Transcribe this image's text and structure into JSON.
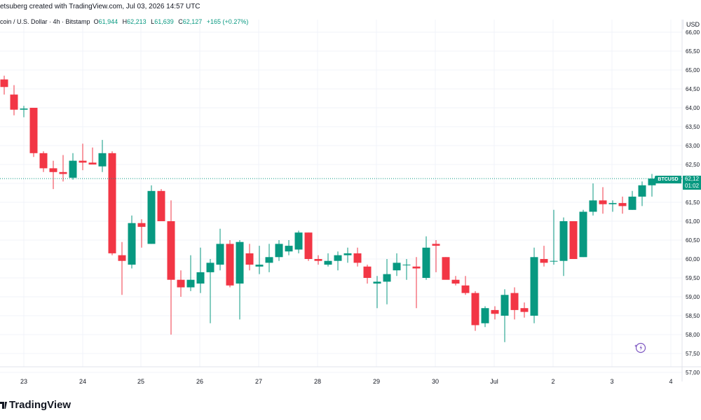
{
  "header": {
    "credit": "etsuberg created with TradingView.com, Jul 03, 2026 14:57 UTC"
  },
  "symbol_line": {
    "name": "coin / U.S. Dollar · 4h · Bitstamp",
    "o_label": "O",
    "o_value": "61,944",
    "h_label": "H",
    "h_value": "62,213",
    "l_label": "L",
    "l_value": "61,639",
    "c_label": "C",
    "c_value": "62,127",
    "change": "+165 (+0.27%)"
  },
  "axis": {
    "currency": "USD"
  },
  "price_tag": {
    "symbol": "BTCUSD",
    "price": "62,12",
    "countdown": "01:02"
  },
  "brand": {
    "name": "TradingView"
  },
  "icons": {
    "logo": "tradingview-logo-icon",
    "sparkle": "sparkle-icon"
  },
  "colors": {
    "up": "#089981",
    "down": "#f23645",
    "grid": "#f0f3fa",
    "axis_text": "#131722"
  },
  "chart_data": {
    "type": "candlestick",
    "title": "",
    "ylabel": "USD",
    "ylim": [
      56800,
      66400
    ],
    "y_ticks": [
      57000,
      57500,
      58000,
      58500,
      59000,
      59500,
      60000,
      60500,
      61000,
      61500,
      62000,
      62500,
      63000,
      63500,
      64000,
      64500,
      65000,
      65500,
      66000
    ],
    "y_tick_labels": [
      "57,00",
      "57,50",
      "58,00",
      "58,50",
      "59,00",
      "59,50",
      "60,00",
      "60,50",
      "61,00",
      "61,50",
      "62,00",
      "62,50",
      "63,00",
      "63,50",
      "64,00",
      "64,50",
      "65,00",
      "65,50",
      "66,00"
    ],
    "x_tick_labels": [
      "23",
      "24",
      "25",
      "26",
      "27",
      "28",
      "29",
      "30",
      "Jul",
      "2",
      "3",
      "4"
    ],
    "last_price": 62127,
    "candles": [
      [
        64750,
        64850,
        64350,
        64550
      ],
      [
        64350,
        64600,
        63800,
        63950
      ],
      [
        63950,
        64050,
        63750,
        63980
      ],
      [
        64000,
        64000,
        62700,
        62800
      ],
      [
        62800,
        62850,
        62300,
        62400
      ],
      [
        62400,
        62600,
        61850,
        62300
      ],
      [
        62300,
        62750,
        62050,
        62250
      ],
      [
        62150,
        62800,
        62100,
        62600
      ],
      [
        62600,
        63050,
        62350,
        62550
      ],
      [
        62550,
        62950,
        62500,
        62500
      ],
      [
        62450,
        63150,
        62300,
        62800
      ],
      [
        62800,
        62850,
        60100,
        60150
      ],
      [
        60100,
        60450,
        59050,
        59950
      ],
      [
        59850,
        61150,
        59750,
        60950
      ],
      [
        60950,
        61050,
        60300,
        60850
      ],
      [
        60400,
        61950,
        60400,
        61800
      ],
      [
        61800,
        61850,
        61000,
        61000
      ],
      [
        61000,
        61550,
        58000,
        59450
      ],
      [
        59450,
        59700,
        59000,
        59250
      ],
      [
        59250,
        60100,
        59150,
        59450
      ],
      [
        59350,
        60300,
        59100,
        59650
      ],
      [
        59650,
        60000,
        58300,
        59900
      ],
      [
        59850,
        60800,
        59700,
        60400
      ],
      [
        60400,
        60500,
        59250,
        59300
      ],
      [
        59350,
        60500,
        58400,
        60450
      ],
      [
        60150,
        60400,
        59700,
        59850
      ],
      [
        59800,
        60350,
        59600,
        59850
      ],
      [
        59900,
        60400,
        59650,
        60050
      ],
      [
        60050,
        60500,
        59950,
        60400
      ],
      [
        60200,
        60500,
        60100,
        60350
      ],
      [
        60250,
        60750,
        60150,
        60700
      ],
      [
        60700,
        60700,
        59950,
        60000
      ],
      [
        60000,
        60100,
        59850,
        59950
      ],
      [
        59850,
        60150,
        59800,
        59950
      ],
      [
        59950,
        60200,
        59700,
        60100
      ],
      [
        60100,
        60300,
        59900,
        60150
      ],
      [
        60150,
        60300,
        59800,
        59900
      ],
      [
        59800,
        59850,
        59350,
        59500
      ],
      [
        59350,
        59550,
        58700,
        59400
      ],
      [
        59400,
        60000,
        58800,
        59600
      ],
      [
        59700,
        60150,
        59550,
        59900
      ],
      [
        59850,
        60000,
        59450,
        59850
      ],
      [
        59800,
        60050,
        58700,
        59750
      ],
      [
        59500,
        60600,
        59450,
        60300
      ],
      [
        60400,
        60500,
        59650,
        60350
      ],
      [
        60050,
        60050,
        59500,
        59450
      ],
      [
        59450,
        59550,
        59300,
        59350
      ],
      [
        59300,
        59550,
        59050,
        59100
      ],
      [
        59100,
        59150,
        58100,
        58250
      ],
      [
        58300,
        58750,
        58200,
        58700
      ],
      [
        58650,
        58750,
        58400,
        58550
      ],
      [
        58500,
        59200,
        57800,
        59050
      ],
      [
        59100,
        59250,
        58400,
        58650
      ],
      [
        58700,
        58850,
        58450,
        58600
      ],
      [
        58500,
        60300,
        58300,
        60050
      ],
      [
        60000,
        60350,
        59800,
        59900
      ],
      [
        59950,
        61300,
        59850,
        59950
      ],
      [
        59950,
        61100,
        59550,
        61000
      ],
      [
        61000,
        61000,
        60000,
        60000
      ],
      [
        60050,
        61300,
        60050,
        61250
      ],
      [
        61250,
        62000,
        61150,
        61550
      ],
      [
        61550,
        61900,
        61200,
        61450
      ],
      [
        61450,
        61550,
        61250,
        61480
      ],
      [
        61480,
        61650,
        61200,
        61400
      ],
      [
        61300,
        61800,
        61300,
        61650
      ],
      [
        61650,
        62050,
        61400,
        61950
      ],
      [
        61950,
        62250,
        61650,
        62127
      ]
    ]
  }
}
